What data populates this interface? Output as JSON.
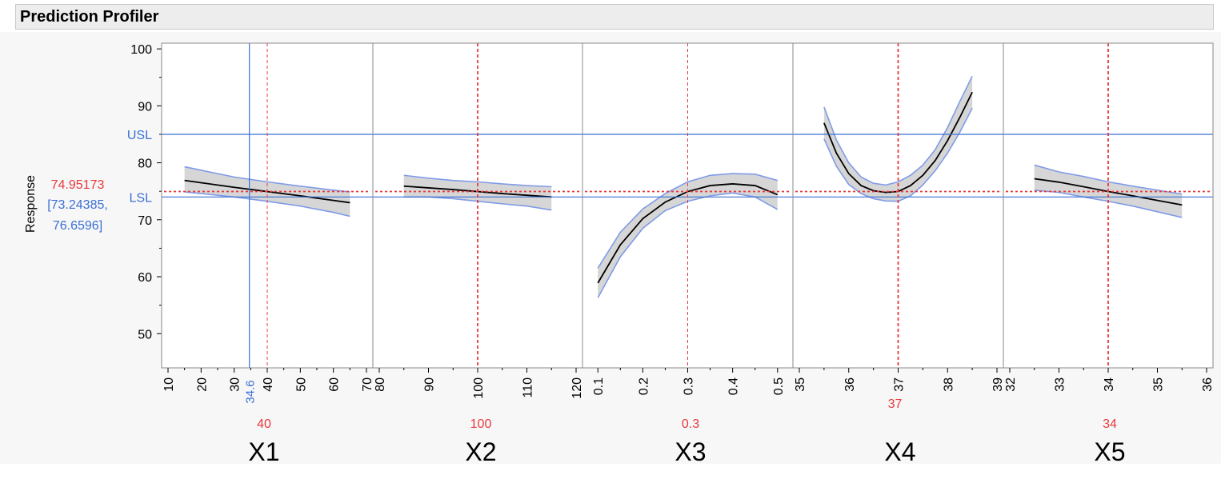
{
  "header": {
    "title": "Prediction Profiler"
  },
  "response": {
    "label": "Response",
    "current": "74.95173",
    "ci_text_1": "[73.24385,",
    "ci_text_2": "76.6596]"
  },
  "colors": {
    "current_value": "#e8383d",
    "crosshair": "#3b6fd4",
    "spec_line": "#3b6fd4",
    "band_fill": "#d6d6d6",
    "band_edge": "#7f9be8",
    "curve": "#000000"
  },
  "chart_data": {
    "type": "line",
    "ylim": [
      44,
      101
    ],
    "yticks": [
      50,
      60,
      70,
      80,
      90,
      100
    ],
    "ytick_labels": [
      "50",
      "60",
      "70",
      "80",
      "90",
      "100"
    ],
    "spec_limits": [
      {
        "name": "USL",
        "value": 85
      },
      {
        "name": "LSL",
        "value": 74
      }
    ],
    "current_response": 74.95173,
    "factors": [
      {
        "name": "X1",
        "current": 40,
        "current_label": "40",
        "xlim": [
          10,
          70
        ],
        "ticks": [
          10,
          20,
          30,
          40,
          50,
          60,
          70
        ],
        "tick_labels": [
          "10",
          "20",
          "30",
          "40",
          "50",
          "60",
          "70"
        ],
        "crosshair": 34.6,
        "crosshair_label": "34.6",
        "curve": {
          "x": [
            15,
            20,
            30,
            40,
            50,
            60,
            65
          ],
          "y": [
            76.9,
            76.5,
            75.7,
            74.95,
            74.2,
            73.4,
            73.0
          ]
        },
        "lower": {
          "x": [
            15,
            20,
            30,
            40,
            50,
            60,
            65
          ],
          "y": [
            74.9,
            74.6,
            74.0,
            73.24,
            72.4,
            71.3,
            70.6
          ]
        },
        "upper": {
          "x": [
            15,
            20,
            30,
            40,
            50,
            60,
            65
          ],
          "y": [
            79.3,
            78.7,
            77.5,
            76.66,
            75.9,
            75.2,
            74.9
          ]
        }
      },
      {
        "name": "X2",
        "current": 100,
        "current_label": "100",
        "xlim": [
          80,
          120
        ],
        "ticks": [
          80,
          90,
          100,
          110,
          120
        ],
        "tick_labels": [
          "80",
          "90",
          "100",
          "110",
          "120"
        ],
        "curve": {
          "x": [
            85,
            90,
            95,
            100,
            105,
            110,
            115
          ],
          "y": [
            75.9,
            75.6,
            75.3,
            74.95,
            74.6,
            74.3,
            74.0
          ]
        },
        "lower": {
          "x": [
            85,
            90,
            95,
            100,
            105,
            110,
            115
          ],
          "y": [
            74.0,
            74.0,
            73.7,
            73.24,
            72.8,
            72.4,
            71.7
          ]
        },
        "upper": {
          "x": [
            85,
            90,
            95,
            100,
            105,
            110,
            115
          ],
          "y": [
            77.8,
            77.3,
            76.9,
            76.66,
            76.3,
            76.0,
            75.8
          ]
        }
      },
      {
        "name": "X3",
        "current": 0.3,
        "current_label": "0.3",
        "xlim": [
          0.08,
          0.52
        ],
        "ticks": [
          0.1,
          0.2,
          0.3,
          0.4,
          0.5
        ],
        "tick_labels": [
          "0.1",
          "0.2",
          "0.3",
          "0.4",
          "0.5"
        ],
        "curve": {
          "x": [
            0.1,
            0.15,
            0.2,
            0.25,
            0.3,
            0.35,
            0.4,
            0.45,
            0.5
          ],
          "y": [
            58.9,
            65.6,
            70.2,
            73.1,
            74.95,
            76.0,
            76.3,
            76.0,
            74.4
          ]
        },
        "lower": {
          "x": [
            0.1,
            0.15,
            0.2,
            0.25,
            0.3,
            0.35,
            0.4,
            0.45,
            0.5
          ],
          "y": [
            56.3,
            63.5,
            68.5,
            71.6,
            73.24,
            74.2,
            74.7,
            74.0,
            71.8
          ]
        },
        "upper": {
          "x": [
            0.1,
            0.15,
            0.2,
            0.25,
            0.3,
            0.35,
            0.4,
            0.45,
            0.5
          ],
          "y": [
            61.5,
            67.8,
            71.9,
            74.6,
            76.66,
            77.8,
            78.1,
            78.0,
            76.9
          ]
        }
      },
      {
        "name": "X4",
        "current": 37,
        "current_label": "37",
        "xlim": [
          35,
          39
        ],
        "ticks": [
          35,
          36,
          37,
          38,
          39
        ],
        "tick_labels": [
          "35",
          "36",
          "37",
          "38",
          "39"
        ],
        "curve": {
          "x": [
            35.5,
            35.75,
            36,
            36.25,
            36.5,
            36.75,
            37,
            37.25,
            37.5,
            37.75,
            38,
            38.25,
            38.5
          ],
          "y": [
            87.0,
            81.7,
            78.1,
            76.0,
            75.1,
            74.8,
            74.95,
            76.0,
            77.8,
            80.4,
            83.9,
            88.0,
            92.4
          ]
        },
        "lower": {
          "x": [
            35.5,
            35.75,
            36,
            36.25,
            36.5,
            36.75,
            37,
            37.25,
            37.5,
            37.75,
            38,
            38.25,
            38.5
          ],
          "y": [
            84.2,
            79.4,
            76.2,
            74.6,
            73.7,
            73.3,
            73.24,
            74.2,
            76.1,
            78.6,
            81.7,
            85.4,
            89.6
          ]
        },
        "upper": {
          "x": [
            35.5,
            35.75,
            36,
            36.25,
            36.5,
            36.75,
            37,
            37.25,
            37.5,
            37.75,
            38,
            38.25,
            38.5
          ],
          "y": [
            89.8,
            84.0,
            80.0,
            77.5,
            76.4,
            76.1,
            76.66,
            77.8,
            79.6,
            82.3,
            86.2,
            90.8,
            95.2
          ]
        }
      },
      {
        "name": "X5",
        "current": 34,
        "current_label": "34",
        "xlim": [
          32,
          36
        ],
        "ticks": [
          32,
          33,
          34,
          35,
          36
        ],
        "tick_labels": [
          "32",
          "33",
          "34",
          "35",
          "36"
        ],
        "curve": {
          "x": [
            32.5,
            33,
            33.5,
            34,
            34.5,
            35,
            35.5
          ],
          "y": [
            77.2,
            76.6,
            75.8,
            74.95,
            74.2,
            73.4,
            72.6
          ]
        },
        "lower": {
          "x": [
            32.5,
            33,
            33.5,
            34,
            34.5,
            35,
            35.5
          ],
          "y": [
            75.2,
            74.8,
            74.0,
            73.24,
            72.4,
            71.4,
            70.4
          ]
        },
        "upper": {
          "x": [
            32.5,
            33,
            33.5,
            34,
            34.5,
            35,
            35.5
          ],
          "y": [
            79.6,
            78.4,
            77.6,
            76.66,
            75.9,
            75.2,
            74.5
          ]
        }
      }
    ]
  }
}
